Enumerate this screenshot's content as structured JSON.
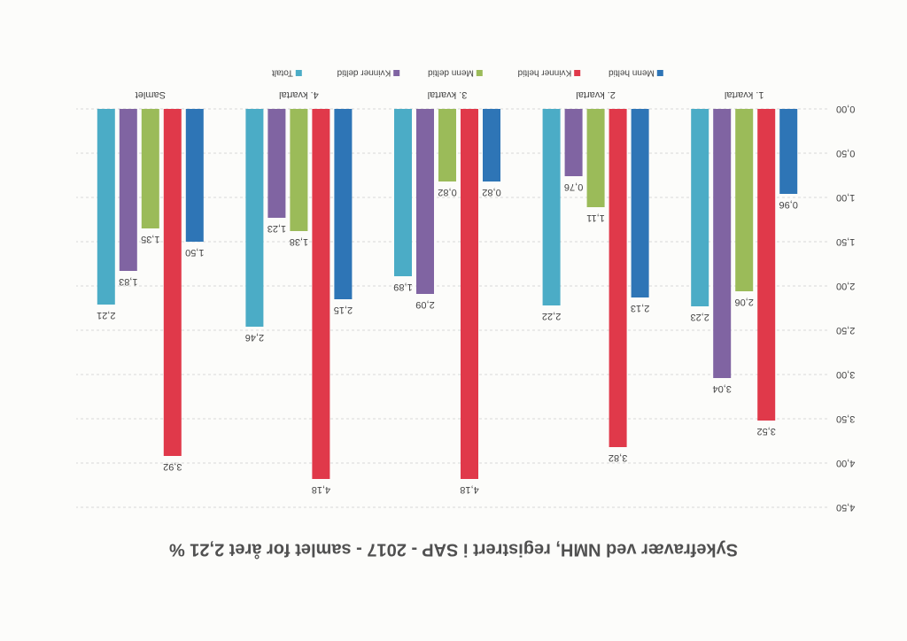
{
  "chart_data": {
    "type": "bar",
    "title": "Sykefravær ved NMH, registrert i SAP - 2017 - samlet for året 2,21 %",
    "categories": [
      "1. kvartal",
      "2. kvartal",
      "3. kvartal",
      "4. kvartal",
      "Samlet"
    ],
    "series": [
      {
        "name": "Menn heltid",
        "color": "#2e75b6",
        "values": [
          0.96,
          2.13,
          0.82,
          2.15,
          1.5
        ],
        "value_labels": [
          "0,96",
          "2,13",
          "0,82",
          "2,15",
          "1,50"
        ]
      },
      {
        "name": "Kvinner heltid",
        "color": "#e0394a",
        "values": [
          3.52,
          3.82,
          4.18,
          4.18,
          3.92
        ],
        "value_labels": [
          "3,52",
          "3,82",
          "4,18",
          "4,18",
          "3,92"
        ]
      },
      {
        "name": "Menn deltid",
        "color": "#9bbb59",
        "values": [
          2.06,
          1.11,
          0.82,
          1.38,
          1.35
        ],
        "value_labels": [
          "2,06",
          "1,11",
          "0,82",
          "1,38",
          "1,35"
        ]
      },
      {
        "name": "Kvinner deltid",
        "color": "#8064a2",
        "values": [
          3.04,
          0.76,
          2.09,
          1.23,
          1.83
        ],
        "value_labels": [
          "3,04",
          "0,76",
          "2,09",
          "1,23",
          "1,83"
        ]
      },
      {
        "name": "Totalt",
        "color": "#4bacc6",
        "values": [
          2.23,
          2.22,
          1.89,
          2.46,
          2.21
        ],
        "value_labels": [
          "2,23",
          "2,22",
          "1,89",
          "2,46",
          "2,21"
        ]
      }
    ],
    "ylim": [
      0,
      4.5
    ],
    "yticks": [
      {
        "value": 0,
        "label": "0,00"
      },
      {
        "value": 0.5,
        "label": "0,50"
      },
      {
        "value": 1,
        "label": "1,00"
      },
      {
        "value": 1.5,
        "label": "1,50"
      },
      {
        "value": 2,
        "label": "2,00"
      },
      {
        "value": 2.5,
        "label": "2,50"
      },
      {
        "value": 3,
        "label": "3,00"
      },
      {
        "value": 3.5,
        "label": "3,50"
      },
      {
        "value": 4,
        "label": "4,00"
      },
      {
        "value": 4.5,
        "label": "4,50"
      }
    ],
    "grid": true
  }
}
